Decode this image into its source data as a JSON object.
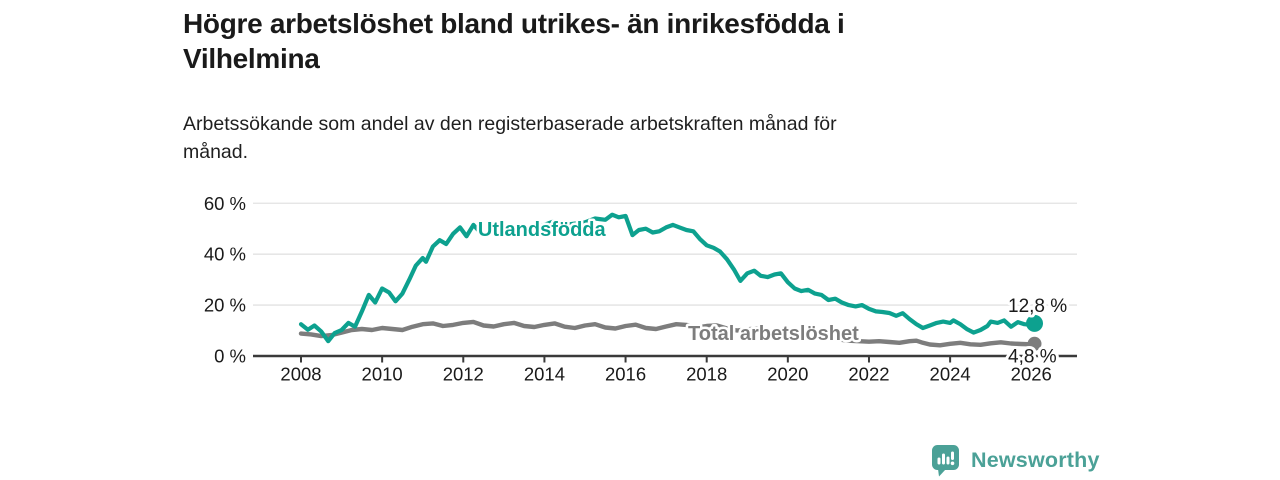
{
  "header": {
    "title": "Högre arbetslöshet bland utrikes- än inrikesfödda i Vilhelmina",
    "title_lines": [
      "Högre arbetslöshet bland utrikes- än inrikesfödda i",
      "Vilhelmina"
    ],
    "subtitle": "Arbetssökande som andel av den registerbaserade arbetskraften månad för månad.",
    "subtitle_lines": [
      "Arbetssökande som andel av den registerbaserade arbetskraften månad för",
      "månad."
    ]
  },
  "colors": {
    "accent_teal": "#0da18f",
    "series_gray": "#7d7d7d",
    "axis": "#3a3a3a",
    "grid": "#e2e2e2",
    "text": "#1a1a1a",
    "logo_teal": "#4ba197"
  },
  "chart_data": {
    "type": "line",
    "title": "Högre arbetslöshet bland utrikes- än inrikesfödda i Vilhelmina",
    "xlabel": "",
    "ylabel": "",
    "unit": "%",
    "grid": "horizontal",
    "legend_position": "inline-labels",
    "xlim": [
      2007.8,
      2026.45
    ],
    "ylim": [
      0,
      63
    ],
    "x_ticks": [
      2008,
      2010,
      2012,
      2014,
      2016,
      2018,
      2020,
      2022,
      2024,
      2026
    ],
    "x_tick_labels": [
      "2008",
      "2010",
      "2012",
      "2014",
      "2016",
      "2018",
      "2020",
      "2022",
      "2024",
      "2026"
    ],
    "y_ticks": [
      0,
      20,
      40,
      60
    ],
    "y_tick_labels": [
      "0 %",
      "20 %",
      "40 %",
      "60 %"
    ],
    "series": [
      {
        "name": "Utlandsfödda",
        "color": "#0da18f",
        "end_label": "12,8 %",
        "end_value": 12.8,
        "label_at": {
          "x": 2012.36,
          "y": 47.1
        },
        "x": [
          2008,
          2008.17,
          2008.33,
          2008.5,
          2008.67,
          2008.83,
          2009,
          2009.17,
          2009.33,
          2009.5,
          2009.67,
          2009.83,
          2010,
          2010.17,
          2010.33,
          2010.5,
          2010.67,
          2010.83,
          2011,
          2011.08,
          2011.25,
          2011.42,
          2011.58,
          2011.75,
          2011.92,
          2012.08,
          2012.25,
          2012.42,
          2012.58,
          2012.75,
          2013,
          2013.25,
          2013.5,
          2013.75,
          2014,
          2014.25,
          2014.5,
          2014.75,
          2015,
          2015.25,
          2015.5,
          2015.67,
          2015.83,
          2016,
          2016.17,
          2016.33,
          2016.5,
          2016.67,
          2016.83,
          2017,
          2017.17,
          2017.33,
          2017.5,
          2017.67,
          2017.83,
          2018,
          2018.17,
          2018.33,
          2018.5,
          2018.67,
          2018.83,
          2019,
          2019.17,
          2019.33,
          2019.5,
          2019.67,
          2019.83,
          2020,
          2020.17,
          2020.33,
          2020.5,
          2020.67,
          2020.83,
          2021,
          2021.17,
          2021.33,
          2021.5,
          2021.67,
          2021.83,
          2022,
          2022.17,
          2022.33,
          2022.5,
          2022.67,
          2022.83,
          2023,
          2023.17,
          2023.33,
          2023.5,
          2023.67,
          2023.83,
          2024,
          2024.08,
          2024.25,
          2024.42,
          2024.58,
          2024.75,
          2024.92,
          2025,
          2025.17,
          2025.33,
          2025.5,
          2025.67,
          2025.83,
          2026,
          2026.08
        ],
        "values": [
          12.5,
          10.3,
          12,
          9.6,
          5.8,
          9,
          10.2,
          13,
          11.5,
          17.5,
          24,
          21,
          26.5,
          25,
          21.5,
          24.5,
          30,
          35.5,
          38.5,
          37,
          43,
          45.5,
          44,
          48,
          50.5,
          47,
          51.5,
          48.5,
          47.5,
          49.5,
          48.5,
          50,
          49,
          50.5,
          51.5,
          53,
          51.5,
          52,
          52.5,
          54,
          53.5,
          55.5,
          54.5,
          55,
          47.5,
          49.5,
          50,
          48.5,
          49,
          50.5,
          51.5,
          50.5,
          49.5,
          49,
          46,
          43.5,
          42.5,
          41,
          38,
          34,
          29.5,
          32.5,
          33.5,
          31.5,
          31,
          32,
          32.5,
          29,
          26.5,
          25.5,
          26,
          24.5,
          24,
          22,
          22.5,
          21,
          20,
          19.5,
          20,
          18.5,
          17.5,
          17.3,
          16.9,
          15.8,
          16.8,
          14.5,
          12.5,
          11,
          12,
          13,
          13.5,
          13,
          14,
          12.5,
          10.5,
          9.2,
          10.2,
          11.8,
          13.5,
          13,
          14,
          11.5,
          13.3,
          12.5,
          12.2,
          12.8
        ]
      },
      {
        "name": "Total arbetslöshet",
        "color": "#7d7d7d",
        "end_label": "4,8 %",
        "end_value": 4.8,
        "label_at": {
          "x": 2017.54,
          "y": 6.3
        },
        "x": [
          2008,
          2008.25,
          2008.5,
          2008.75,
          2009,
          2009.25,
          2009.5,
          2009.75,
          2010,
          2010.25,
          2010.5,
          2010.75,
          2011,
          2011.25,
          2011.5,
          2011.75,
          2012,
          2012.25,
          2012.5,
          2012.75,
          2013,
          2013.25,
          2013.5,
          2013.75,
          2014,
          2014.25,
          2014.5,
          2014.75,
          2015,
          2015.25,
          2015.5,
          2015.75,
          2016,
          2016.25,
          2016.5,
          2016.75,
          2017,
          2017.25,
          2017.5,
          2017.75,
          2018,
          2018.25,
          2018.5,
          2018.75,
          2019,
          2019.25,
          2019.5,
          2019.75,
          2020,
          2020.25,
          2020.5,
          2020.75,
          2021,
          2021.25,
          2021.5,
          2021.75,
          2022,
          2022.25,
          2022.5,
          2022.75,
          2023,
          2023.17,
          2023.33,
          2023.5,
          2023.75,
          2024,
          2024.25,
          2024.5,
          2024.75,
          2025,
          2025.25,
          2025.5,
          2025.75,
          2026,
          2026.08
        ],
        "values": [
          8.8,
          8.5,
          7.8,
          8.2,
          9.2,
          10.2,
          10.6,
          10.2,
          11,
          10.6,
          10.2,
          11.5,
          12.5,
          12.8,
          11.8,
          12.2,
          13,
          13.4,
          12,
          11.6,
          12.5,
          13,
          11.8,
          11.4,
          12.2,
          12.8,
          11.5,
          11,
          12,
          12.5,
          11.2,
          10.8,
          11.8,
          12.3,
          11,
          10.6,
          11.6,
          12.5,
          12.2,
          11.2,
          11.8,
          12,
          10.8,
          10,
          10.5,
          10.8,
          9.5,
          9,
          9.2,
          9,
          8.2,
          7.5,
          7,
          6.5,
          6,
          5.8,
          5.6,
          5.8,
          5.5,
          5.2,
          5.8,
          6,
          5.2,
          4.5,
          4.2,
          4.8,
          5.2,
          4.6,
          4.4,
          5,
          5.4,
          4.9,
          4.7,
          4.6,
          4.8
        ]
      }
    ]
  },
  "footer": {
    "brand": "Newsworthy",
    "logo_icon": "bar-chart-speech-bubble-icon"
  }
}
